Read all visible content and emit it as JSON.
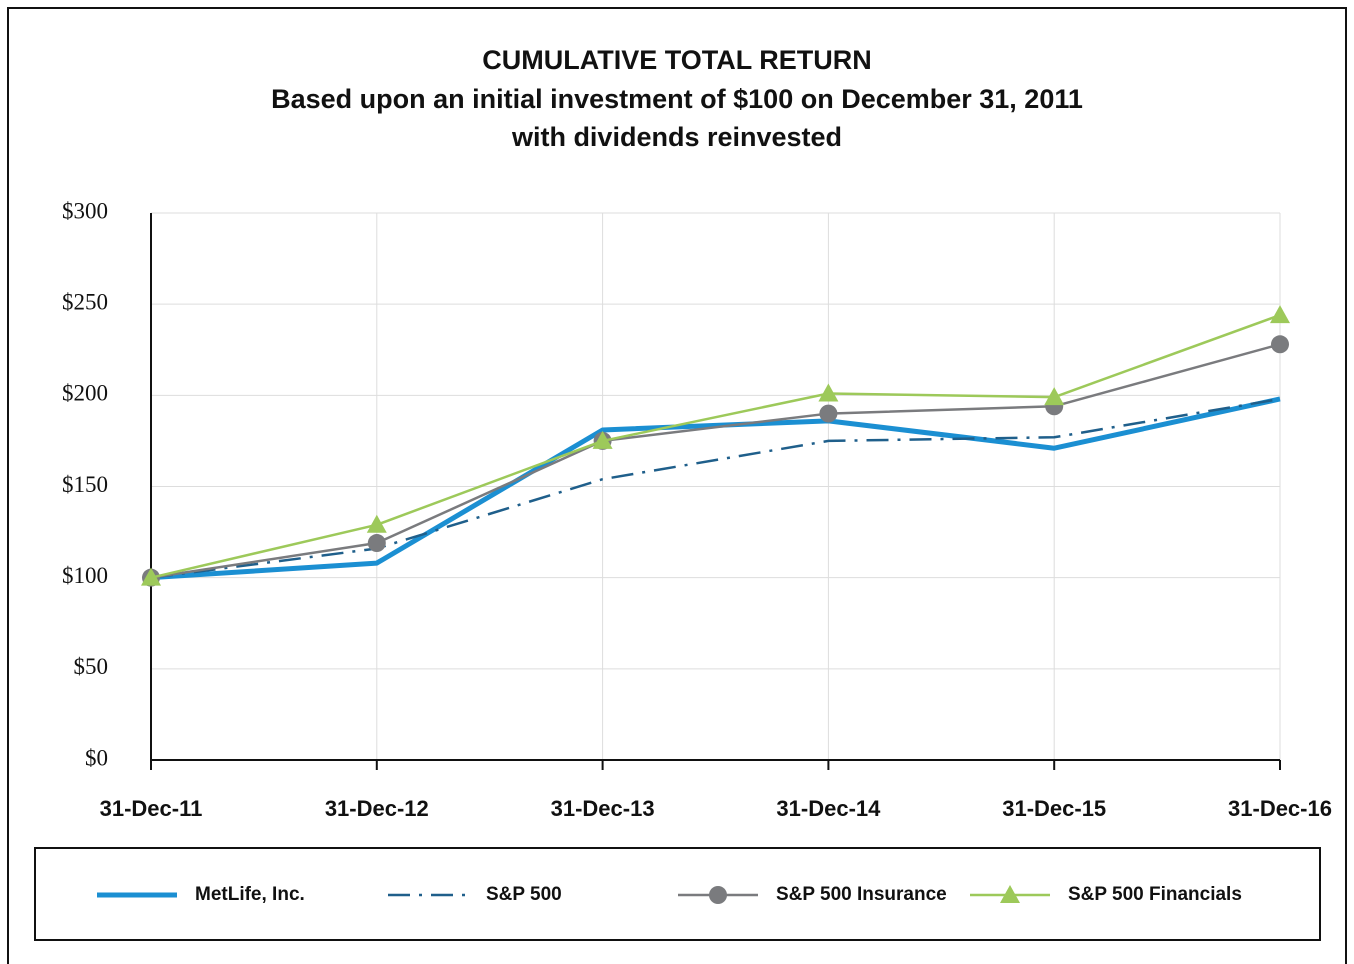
{
  "chart_data": {
    "type": "line",
    "title": "CUMULATIVE TOTAL RETURN",
    "subtitle": [
      "Based upon an initial investment of $100 on December 31, 2011",
      "with dividends reinvested"
    ],
    "categories": [
      "31-Dec-11",
      "31-Dec-12",
      "31-Dec-13",
      "31-Dec-14",
      "31-Dec-15",
      "31-Dec-16"
    ],
    "series": [
      {
        "name": "MetLife, Inc.",
        "color": "#1b8fd2",
        "values": [
          100,
          108,
          181,
          186,
          171,
          198
        ]
      },
      {
        "name": "S&P 500",
        "color": "#1f5f8b",
        "values": [
          100,
          116,
          154,
          175,
          177,
          198
        ]
      },
      {
        "name": "S&P 500 Insurance",
        "color": "#7a7b7e",
        "values": [
          100,
          119,
          175,
          190,
          194,
          228
        ]
      },
      {
        "name": "S&P 500 Financials",
        "color": "#9dc95a",
        "values": [
          100,
          129,
          175,
          201,
          199,
          244
        ]
      }
    ],
    "ylim": [
      0,
      300
    ],
    "yticks": [
      {
        "value": 0,
        "label": "$0"
      },
      {
        "value": 50,
        "label": "$50"
      },
      {
        "value": 100,
        "label": "$100"
      },
      {
        "value": 150,
        "label": "$150"
      },
      {
        "value": 200,
        "label": "$200"
      },
      {
        "value": 250,
        "label": "$250"
      },
      {
        "value": 300,
        "label": "$300"
      }
    ],
    "grid": true
  }
}
